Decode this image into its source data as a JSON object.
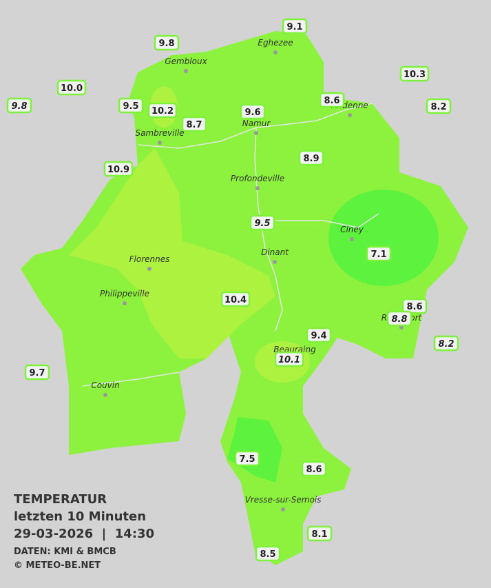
{
  "map": {
    "title": "TEMPERATUR",
    "subtitle": "letzten 10 Minuten",
    "datetime": "29-03-2026  |  14:30",
    "source": "DATEN: KMI & BMCB",
    "copyright": "© METEO-BE.NET",
    "cities": [
      "Eghezee",
      "Gembloux",
      "Andenne",
      "Namur",
      "Sambreville",
      "Profondeville",
      "Ciney",
      "Dinant",
      "Florennes",
      "Philippeville",
      "Rochefort",
      "Beauraing",
      "Couvin",
      "Vresse-sur-Semois"
    ],
    "stations": [
      {
        "label": "9.1"
      },
      {
        "label": "9.8"
      },
      {
        "label": "10.3"
      },
      {
        "label": "10.0"
      },
      {
        "label": "9.8",
        "italic": true
      },
      {
        "label": "9.5"
      },
      {
        "label": "10.2"
      },
      {
        "label": "8.6"
      },
      {
        "label": "8.2"
      },
      {
        "label": "9.6"
      },
      {
        "label": "8.7"
      },
      {
        "label": "8.9"
      },
      {
        "label": "10.9"
      },
      {
        "label": "9.5",
        "italic": true
      },
      {
        "label": "7.1"
      },
      {
        "label": "10.4"
      },
      {
        "label": "8.6"
      },
      {
        "label": "8.8",
        "italic": true
      },
      {
        "label": "9.4"
      },
      {
        "label": "8.2",
        "italic": true
      },
      {
        "label": "10.1",
        "italic": true
      },
      {
        "label": "9.7"
      },
      {
        "label": "7.5"
      },
      {
        "label": "8.6"
      },
      {
        "label": "8.1"
      },
      {
        "label": "8.5"
      }
    ]
  }
}
